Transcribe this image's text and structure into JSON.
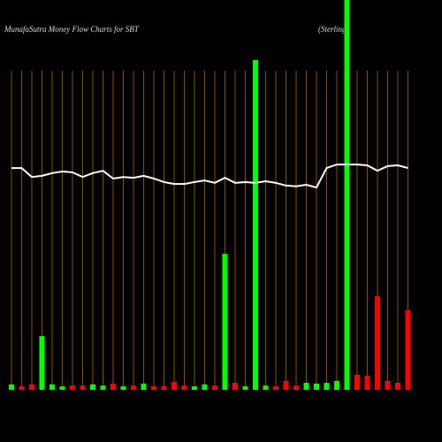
{
  "chart_data": {
    "type": "bar",
    "title": "MunafaSutra  Money Flow  Charts for SBT",
    "subtitle": "(Sterling",
    "ylim": [
      0,
      100
    ],
    "values": [
      1.4,
      0.9,
      1.4,
      13.8,
      1.4,
      0.9,
      1.1,
      1.1,
      1.4,
      1.1,
      1.6,
      0.9,
      1.1,
      1.6,
      0.9,
      0.9,
      2.0,
      1.1,
      0.9,
      1.4,
      1.1,
      34.9,
      1.8,
      0.9,
      84.6,
      1.1,
      0.9,
      2.3,
      1.1,
      1.8,
      1.6,
      1.8,
      2.3,
      100,
      3.9,
      3.6,
      24.0,
      2.3,
      1.8,
      20.4
    ],
    "colors": [
      "#00ff00",
      "#ff0000",
      "#ff0000",
      "#00ff00",
      "#00ff00",
      "#00ff00",
      "#ff0000",
      "#ff0000",
      "#00ff00",
      "#00ff00",
      "#ff0000",
      "#00ff00",
      "#ff0000",
      "#00ff00",
      "#ff0000",
      "#ff0000",
      "#ff0000",
      "#ff0000",
      "#00ff00",
      "#00ff00",
      "#ff0000",
      "#00ff00",
      "#ff0000",
      "#00ff00",
      "#00ff00",
      "#00ff00",
      "#ff0000",
      "#ff0000",
      "#ff0000",
      "#00ff00",
      "#00ff00",
      "#00ff00",
      "#00ff00",
      "#00ff00",
      "#ff0000",
      "#ff0000",
      "#ff0000",
      "#ff0000",
      "#ff0000",
      "#ff0000"
    ],
    "line": {
      "color": "#ffffff",
      "values": [
        56.9,
        56.9,
        54.6,
        54.9,
        55.6,
        56.0,
        55.8,
        54.6,
        55.6,
        56.2,
        54.2,
        54.6,
        54.4,
        54.9,
        54.2,
        53.3,
        52.8,
        52.8,
        53.3,
        53.7,
        53.1,
        54.4,
        53.1,
        53.3,
        53.1,
        53.5,
        53.1,
        52.4,
        52.2,
        52.6,
        51.9,
        56.9,
        57.8,
        57.8,
        57.8,
        57.6,
        56.2,
        57.4,
        57.6,
        56.9
      ]
    },
    "grid_color": "#b36200"
  }
}
